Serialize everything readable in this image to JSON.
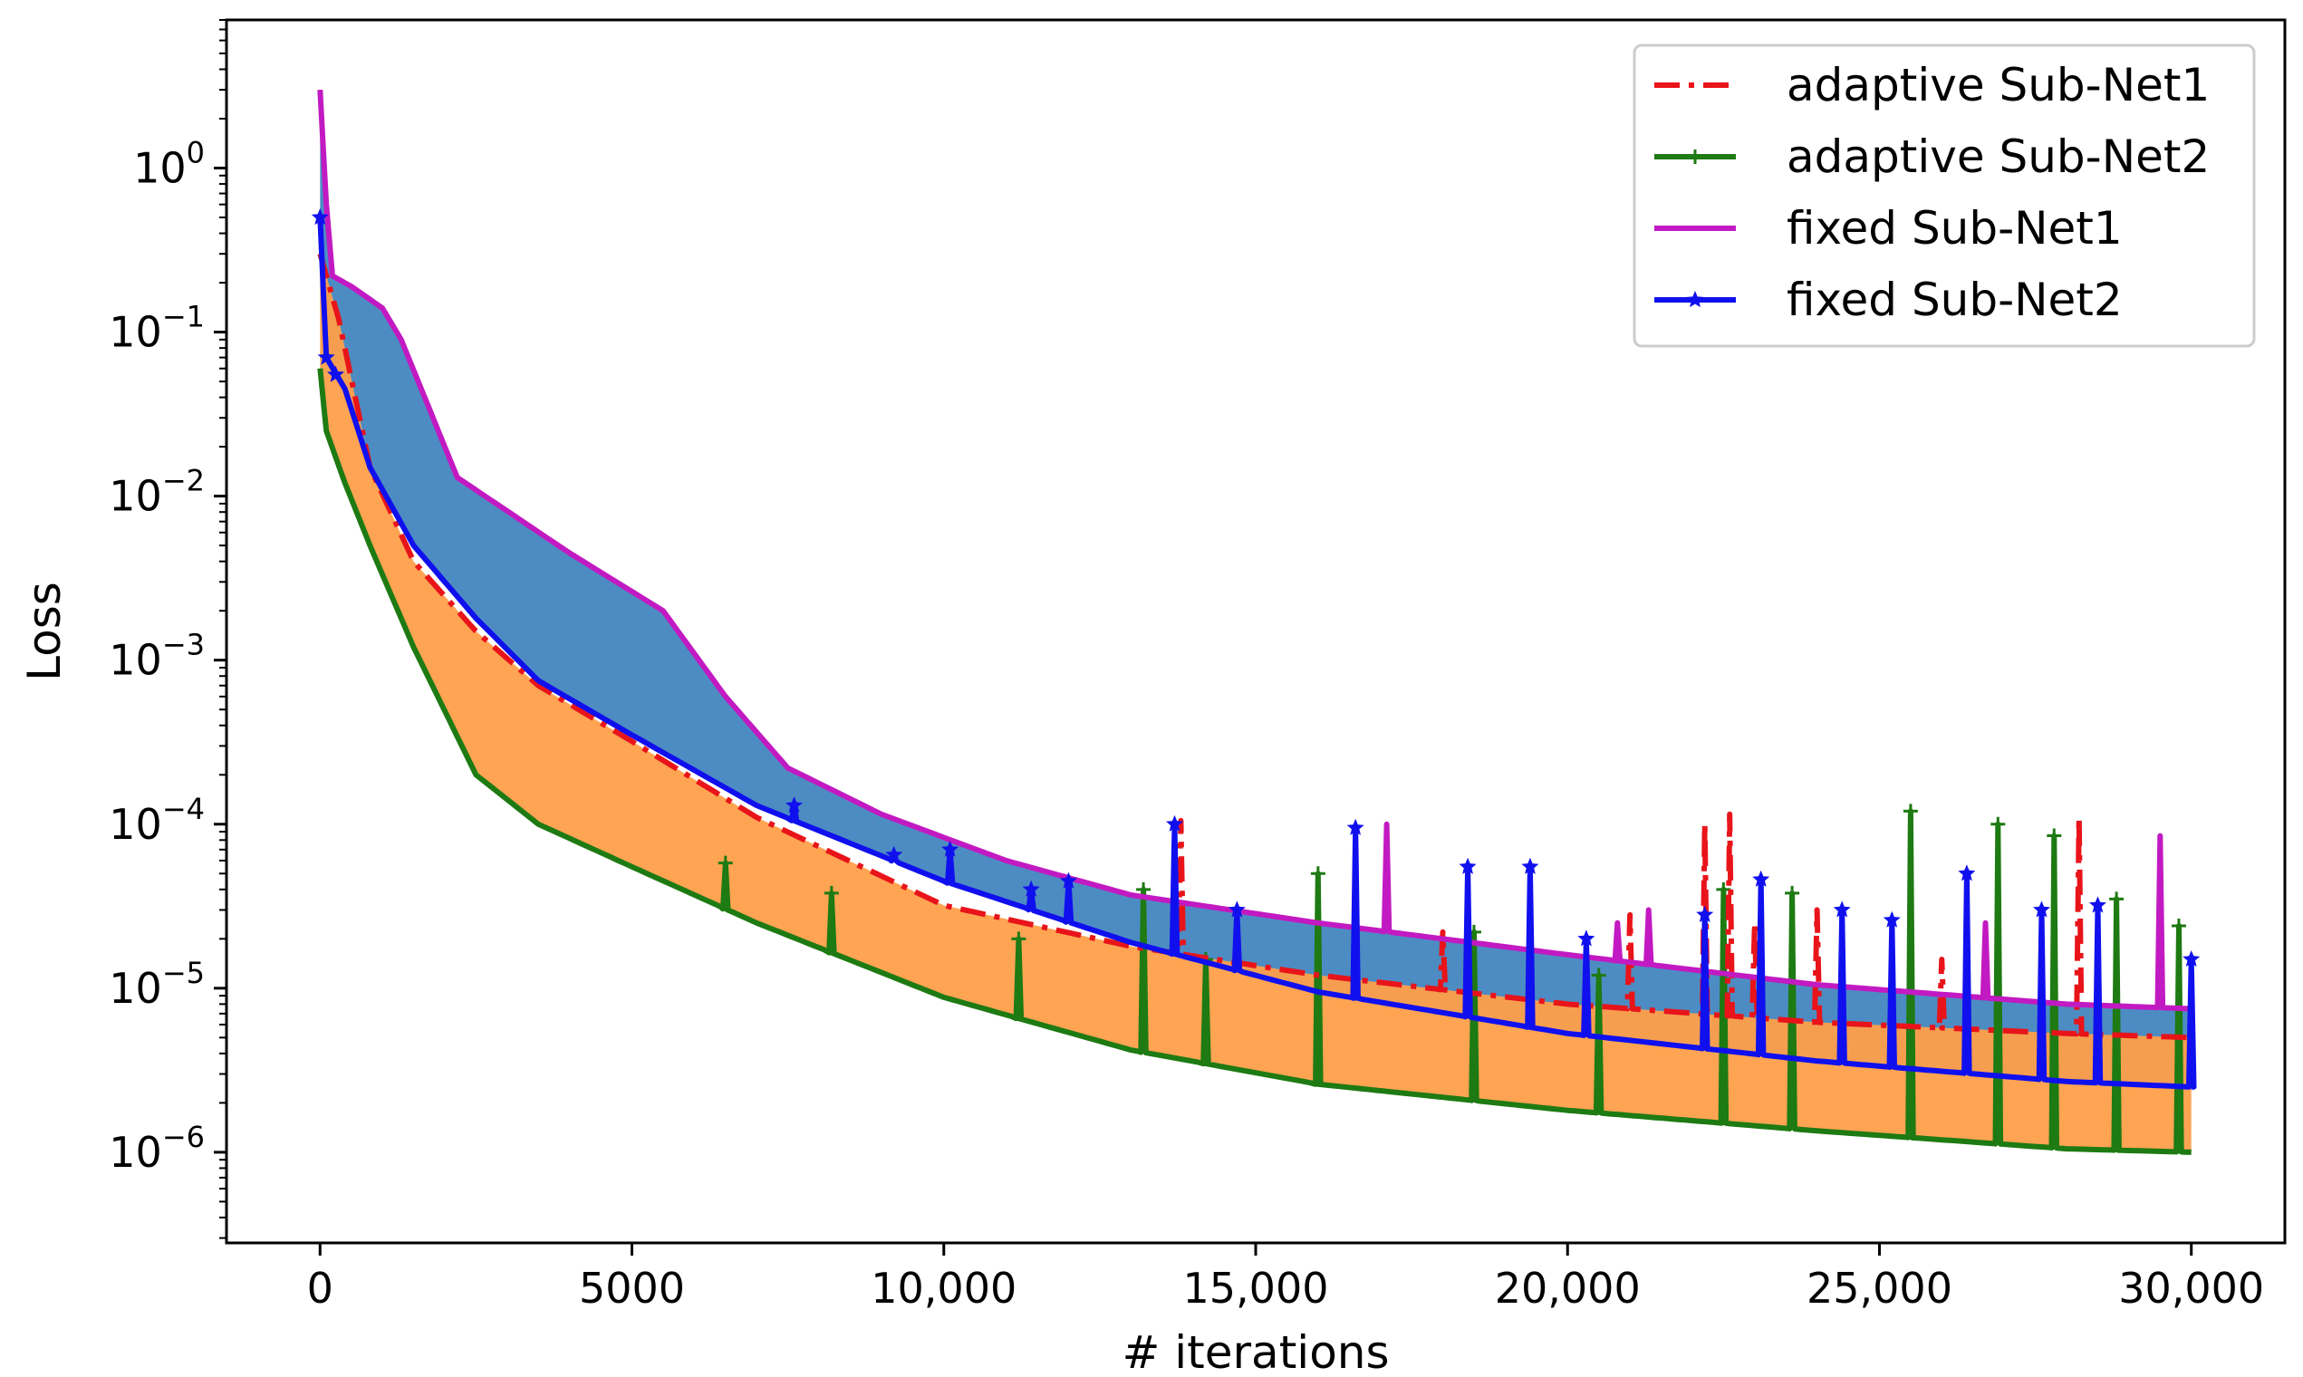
{
  "chart_data": {
    "type": "line",
    "title": "",
    "xlabel": "# iterations",
    "ylabel": "Loss",
    "yscale": "log",
    "xlim": [
      -1500,
      31500
    ],
    "ylim": [
      2.8e-07,
      8
    ],
    "x_ticks": [
      {
        "value": 0,
        "label": "0"
      },
      {
        "value": 5000,
        "label": "5000"
      },
      {
        "value": 10000,
        "label": "10,000"
      },
      {
        "value": 15000,
        "label": "15,000"
      },
      {
        "value": 20000,
        "label": "20,000"
      },
      {
        "value": 25000,
        "label": "25,000"
      },
      {
        "value": 30000,
        "label": "30,000"
      }
    ],
    "y_ticks": [
      {
        "value": 1,
        "base": "10",
        "exp": "0"
      },
      {
        "value": 0.1,
        "base": "10",
        "exp": "−1"
      },
      {
        "value": 0.01,
        "base": "10",
        "exp": "−2"
      },
      {
        "value": 0.001,
        "base": "10",
        "exp": "−3"
      },
      {
        "value": 0.0001,
        "base": "10",
        "exp": "−4"
      },
      {
        "value": 1e-05,
        "base": "10",
        "exp": "−5"
      },
      {
        "value": 1e-06,
        "base": "10",
        "exp": "−6"
      }
    ],
    "legend_position": "top-right",
    "series": [
      {
        "name": "adaptive Sub-Net1",
        "color": "#e8141a",
        "style": "dashdot",
        "marker": "none",
        "x": [
          0,
          300,
          800,
          1500,
          2500,
          3500,
          5000,
          7000,
          10000,
          13000,
          16000,
          20000,
          24000,
          28000,
          30000
        ],
        "y": [
          0.3,
          0.12,
          0.015,
          0.004,
          0.0015,
          0.0007,
          0.00032,
          0.00011,
          3.2e-05,
          1.8e-05,
          1.2e-05,
          8e-06,
          6.2e-06,
          5.3e-06,
          5e-06
        ],
        "spikes": [
          {
            "x": 13800,
            "y": 0.000105
          },
          {
            "x": 18000,
            "y": 2.2e-05
          },
          {
            "x": 21000,
            "y": 2.8e-05
          },
          {
            "x": 22200,
            "y": 0.0001
          },
          {
            "x": 22600,
            "y": 0.000115
          },
          {
            "x": 23000,
            "y": 2.5e-05
          },
          {
            "x": 24000,
            "y": 3e-05
          },
          {
            "x": 26000,
            "y": 1.5e-05
          },
          {
            "x": 28200,
            "y": 0.00011
          }
        ]
      },
      {
        "name": "adaptive Sub-Net2",
        "color": "#1e7a12",
        "style": "solid",
        "marker": "plus",
        "x": [
          0,
          100,
          400,
          800,
          1500,
          2500,
          3500,
          5000,
          7000,
          10000,
          13000,
          16000,
          20000,
          24000,
          28000,
          30000
        ],
        "y": [
          0.06,
          0.025,
          0.012,
          0.005,
          0.0012,
          0.0002,
          0.0001,
          5.5e-05,
          2.5e-05,
          8.8e-06,
          4.2e-06,
          2.6e-06,
          1.8e-06,
          1.35e-06,
          1.05e-06,
          1e-06
        ],
        "spikes": [
          {
            "x": 6500,
            "y": 5.8e-05
          },
          {
            "x": 8200,
            "y": 3.8e-05
          },
          {
            "x": 11200,
            "y": 2e-05
          },
          {
            "x": 13200,
            "y": 4e-05
          },
          {
            "x": 14200,
            "y": 1.5e-05
          },
          {
            "x": 16000,
            "y": 5e-05
          },
          {
            "x": 18500,
            "y": 2.2e-05
          },
          {
            "x": 20500,
            "y": 1.2e-05
          },
          {
            "x": 22500,
            "y": 4e-05
          },
          {
            "x": 23600,
            "y": 3.8e-05
          },
          {
            "x": 25500,
            "y": 0.00012
          },
          {
            "x": 26900,
            "y": 0.0001
          },
          {
            "x": 27800,
            "y": 8.5e-05
          },
          {
            "x": 28800,
            "y": 3.5e-05
          },
          {
            "x": 29800,
            "y": 2.4e-05
          }
        ]
      },
      {
        "name": "fixed Sub-Net1",
        "color": "#c21ac2",
        "style": "solid",
        "marker": "none",
        "x": [
          0,
          100,
          200,
          500,
          1000,
          1300,
          2200,
          4000,
          5500,
          6500,
          7500,
          9000,
          11000,
          13000,
          16000,
          20000,
          24000,
          28000,
          30000
        ],
        "y": [
          3,
          0.6,
          0.22,
          0.19,
          0.14,
          0.09,
          0.013,
          0.0045,
          0.002,
          0.0006,
          0.00022,
          0.000115,
          6e-05,
          3.7e-05,
          2.5e-05,
          1.6e-05,
          1.05e-05,
          8e-06,
          7.5e-06
        ],
        "spikes": [
          {
            "x": 17100,
            "y": 0.0001
          },
          {
            "x": 20800,
            "y": 2.5e-05
          },
          {
            "x": 21300,
            "y": 3e-05
          },
          {
            "x": 26700,
            "y": 2.5e-05
          },
          {
            "x": 29500,
            "y": 8.5e-05
          }
        ]
      },
      {
        "name": "fixed Sub-Net2",
        "color": "#1010ee",
        "style": "solid",
        "marker": "star",
        "x": [
          0,
          100,
          400,
          800,
          1500,
          2500,
          3500,
          5000,
          7000,
          10000,
          13000,
          16000,
          20000,
          24000,
          28000,
          30000
        ],
        "y": [
          0.5,
          0.07,
          0.045,
          0.015,
          0.005,
          0.0018,
          0.00075,
          0.00035,
          0.00013,
          4.5e-05,
          1.9e-05,
          9.5e-06,
          5.3e-06,
          3.6e-06,
          2.7e-06,
          2.5e-06
        ],
        "spikes": [
          {
            "x": 7600,
            "y": 0.00013
          },
          {
            "x": 9200,
            "y": 6.5e-05
          },
          {
            "x": 10100,
            "y": 7e-05
          },
          {
            "x": 11400,
            "y": 4e-05
          },
          {
            "x": 12000,
            "y": 4.5e-05
          },
          {
            "x": 13700,
            "y": 0.0001
          },
          {
            "x": 14700,
            "y": 3e-05
          },
          {
            "x": 16600,
            "y": 9.5e-05
          },
          {
            "x": 18400,
            "y": 5.5e-05
          },
          {
            "x": 19400,
            "y": 5.5e-05
          },
          {
            "x": 20300,
            "y": 2e-05
          },
          {
            "x": 22200,
            "y": 2.8e-05
          },
          {
            "x": 23100,
            "y": 4.6e-05
          },
          {
            "x": 24400,
            "y": 3e-05
          },
          {
            "x": 25200,
            "y": 2.6e-05
          },
          {
            "x": 26400,
            "y": 5e-05
          },
          {
            "x": 27600,
            "y": 3e-05
          },
          {
            "x": 28500,
            "y": 3.2e-05
          },
          {
            "x": 30000,
            "y": 1.5e-05
          }
        ]
      }
    ],
    "fills": [
      {
        "name": "fixed-gap",
        "between": [
          "fixed Sub-Net1",
          "fixed Sub-Net2"
        ],
        "color": "#3a7fbd",
        "opacity": 0.9
      },
      {
        "name": "adaptive-gap",
        "between": [
          "adaptive Sub-Net1",
          "adaptive Sub-Net2"
        ],
        "color": "#ff9f4a",
        "opacity": 0.95
      }
    ]
  }
}
